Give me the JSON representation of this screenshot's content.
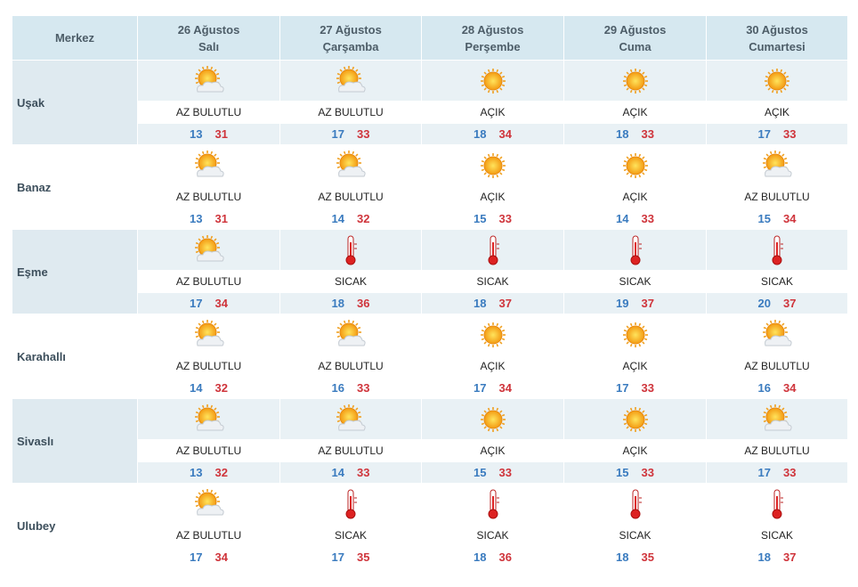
{
  "header": {
    "corner": "Merkez",
    "days": [
      {
        "date": "26 Ağustos",
        "weekday": "Salı"
      },
      {
        "date": "27 Ağustos",
        "weekday": "Çarşamba"
      },
      {
        "date": "28 Ağustos",
        "weekday": "Perşembe"
      },
      {
        "date": "29 Ağustos",
        "weekday": "Cuma"
      },
      {
        "date": "30 Ağustos",
        "weekday": "Cumartesi"
      }
    ]
  },
  "rows": [
    {
      "name": "Uşak",
      "cells": [
        {
          "icon": "partly-cloudy",
          "condition": "AZ BULUTLU",
          "low": 13,
          "high": 31
        },
        {
          "icon": "partly-cloudy",
          "condition": "AZ BULUTLU",
          "low": 17,
          "high": 33
        },
        {
          "icon": "sun",
          "condition": "AÇIK",
          "low": 18,
          "high": 34
        },
        {
          "icon": "sun",
          "condition": "AÇIK",
          "low": 18,
          "high": 33
        },
        {
          "icon": "sun",
          "condition": "AÇIK",
          "low": 17,
          "high": 33
        }
      ]
    },
    {
      "name": "Banaz",
      "cells": [
        {
          "icon": "partly-cloudy",
          "condition": "AZ BULUTLU",
          "low": 13,
          "high": 31
        },
        {
          "icon": "partly-cloudy",
          "condition": "AZ BULUTLU",
          "low": 14,
          "high": 32
        },
        {
          "icon": "sun",
          "condition": "AÇIK",
          "low": 15,
          "high": 33
        },
        {
          "icon": "sun",
          "condition": "AÇIK",
          "low": 14,
          "high": 33
        },
        {
          "icon": "partly-cloudy",
          "condition": "AZ BULUTLU",
          "low": 15,
          "high": 34
        }
      ]
    },
    {
      "name": "Eşme",
      "cells": [
        {
          "icon": "partly-cloudy",
          "condition": "AZ BULUTLU",
          "low": 17,
          "high": 34
        },
        {
          "icon": "hot",
          "condition": "SICAK",
          "low": 18,
          "high": 36
        },
        {
          "icon": "hot",
          "condition": "SICAK",
          "low": 18,
          "high": 37
        },
        {
          "icon": "hot",
          "condition": "SICAK",
          "low": 19,
          "high": 37
        },
        {
          "icon": "hot",
          "condition": "SICAK",
          "low": 20,
          "high": 37
        }
      ]
    },
    {
      "name": "Karahallı",
      "cells": [
        {
          "icon": "partly-cloudy",
          "condition": "AZ BULUTLU",
          "low": 14,
          "high": 32
        },
        {
          "icon": "partly-cloudy",
          "condition": "AZ BULUTLU",
          "low": 16,
          "high": 33
        },
        {
          "icon": "sun",
          "condition": "AÇIK",
          "low": 17,
          "high": 34
        },
        {
          "icon": "sun",
          "condition": "AÇIK",
          "low": 17,
          "high": 33
        },
        {
          "icon": "partly-cloudy",
          "condition": "AZ BULUTLU",
          "low": 16,
          "high": 34
        }
      ]
    },
    {
      "name": "Sivaslı",
      "cells": [
        {
          "icon": "partly-cloudy",
          "condition": "AZ BULUTLU",
          "low": 13,
          "high": 32
        },
        {
          "icon": "partly-cloudy",
          "condition": "AZ BULUTLU",
          "low": 14,
          "high": 33
        },
        {
          "icon": "sun",
          "condition": "AÇIK",
          "low": 15,
          "high": 33
        },
        {
          "icon": "sun",
          "condition": "AÇIK",
          "low": 15,
          "high": 33
        },
        {
          "icon": "partly-cloudy",
          "condition": "AZ BULUTLU",
          "low": 17,
          "high": 33
        }
      ]
    },
    {
      "name": "Ulubey",
      "cells": [
        {
          "icon": "partly-cloudy",
          "condition": "AZ BULUTLU",
          "low": 17,
          "high": 34
        },
        {
          "icon": "hot",
          "condition": "SICAK",
          "low": 17,
          "high": 35
        },
        {
          "icon": "hot",
          "condition": "SICAK",
          "low": 18,
          "high": 36
        },
        {
          "icon": "hot",
          "condition": "SICAK",
          "low": 18,
          "high": 35
        },
        {
          "icon": "hot",
          "condition": "SICAK",
          "low": 18,
          "high": 37
        }
      ]
    }
  ]
}
